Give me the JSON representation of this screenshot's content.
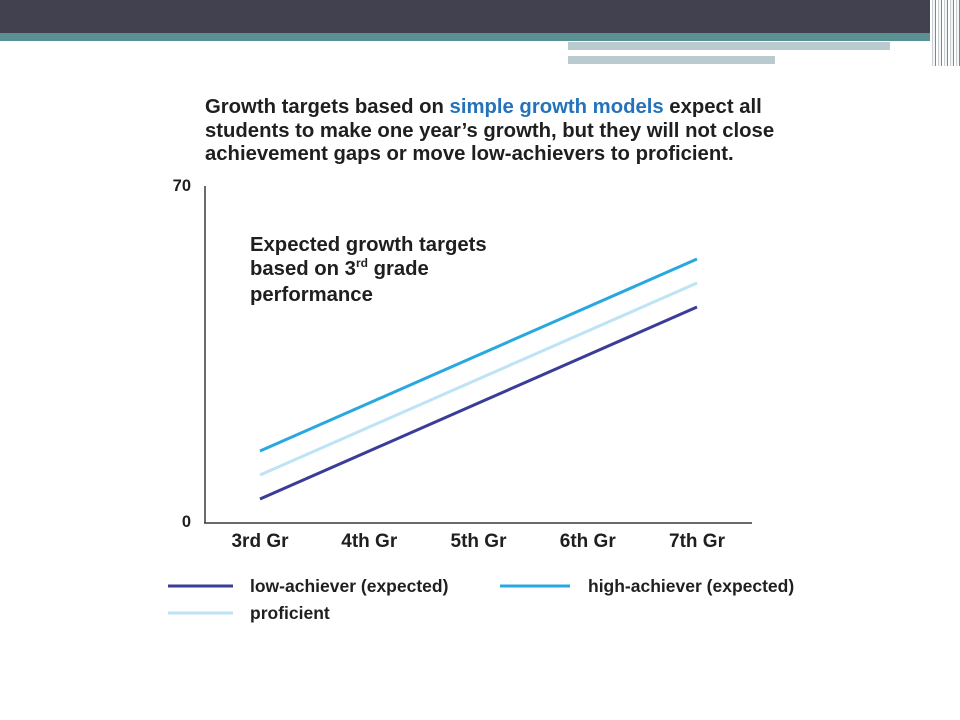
{
  "theme": {
    "header": "#41414F",
    "accent_stripe": "#5A9192"
  },
  "chart_data": {
    "type": "line",
    "title_segments": [
      "Growth targets based on ",
      "simple growth models",
      " expect all",
      "students to make one year’s growth, but they will not close",
      "achievement gaps or move low-achievers to proficient."
    ],
    "title_highlight_color": "#2473BA",
    "annotation": {
      "line1": "Expected growth targets",
      "line2": "based on 3",
      "line2_superscript": "rd",
      "line2_rest": " grade",
      "line3": "performance"
    },
    "categories": [
      "3rd Gr",
      "4th Gr",
      "5th Gr",
      "6th Gr",
      "7th Gr"
    ],
    "ylim": [
      0,
      70
    ],
    "yticks": [
      0,
      70
    ],
    "grid": false,
    "legend": "bottom",
    "series": [
      {
        "name": "low-achiever (expected)",
        "color": "#3A3C97",
        "values": [
          5,
          15,
          25,
          35,
          45
        ]
      },
      {
        "name": "high-achiever (expected)",
        "color": "#29A8E0",
        "values": [
          15,
          25,
          35,
          45,
          55
        ]
      },
      {
        "name": "proficient",
        "color": "#BDE3F5",
        "values": [
          10,
          20,
          30,
          40,
          50
        ]
      }
    ]
  }
}
